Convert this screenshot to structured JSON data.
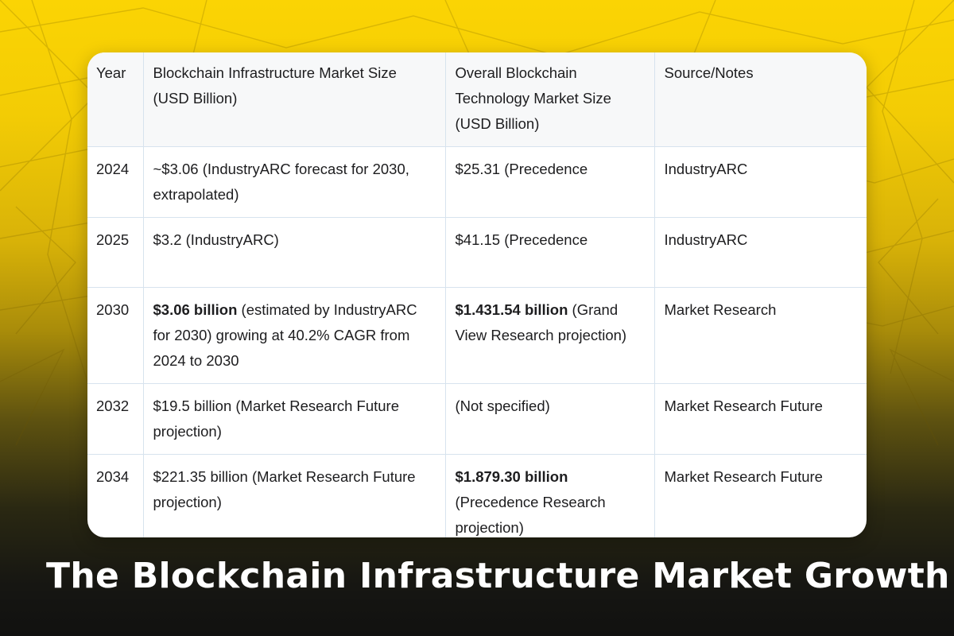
{
  "title": "The Blockchain Infrastructure Market Growth",
  "table": {
    "headers": [
      "Year",
      "Blockchain Infrastructure Market Size (USD Billion)",
      "Overall Blockchain Technology Market Size (USD Billion)",
      "Source/Notes"
    ],
    "rows": [
      {
        "year": "2024",
        "infra_bold": "",
        "infra_rest": "~$3.06 (IndustryARC forecast for 2030, extrapolated)",
        "overall_bold": "",
        "overall_rest": "$25.31 (Precedence",
        "source": "IndustryARC"
      },
      {
        "year": "2025",
        "infra_bold": "",
        "infra_rest": "$3.2 (IndustryARC)",
        "overall_bold": "",
        "overall_rest": "$41.15 (Precedence",
        "source": "IndustryARC"
      },
      {
        "year": "2030",
        "infra_bold": "$3.06 billion",
        "infra_rest": " (estimated by IndustryARC for 2030) growing at 40.2% CAGR from 2024 to 2030",
        "overall_bold": "$1.431.54 billion",
        "overall_rest": " (Grand View Research projection)",
        "source": "Market Research"
      },
      {
        "year": "2032",
        "infra_bold": "",
        "infra_rest": "$19.5 billion (Market Research Future projection)",
        "overall_bold": "",
        "overall_rest": "(Not specified)",
        "source": "Market Research Future"
      },
      {
        "year": "2034",
        "infra_bold": "",
        "infra_rest": "$221.35 billion (Market Research Future projection)",
        "overall_bold": "$1.879.30 billion",
        "overall_rest": " (Precedence Research projection)",
        "source": "Market Research Future"
      }
    ]
  },
  "colors": {
    "background_top": "#fbd404",
    "background_bottom": "#111110",
    "card": "#ffffff",
    "grid_line": "#d7e3ee",
    "title_text": "#ffffff"
  }
}
